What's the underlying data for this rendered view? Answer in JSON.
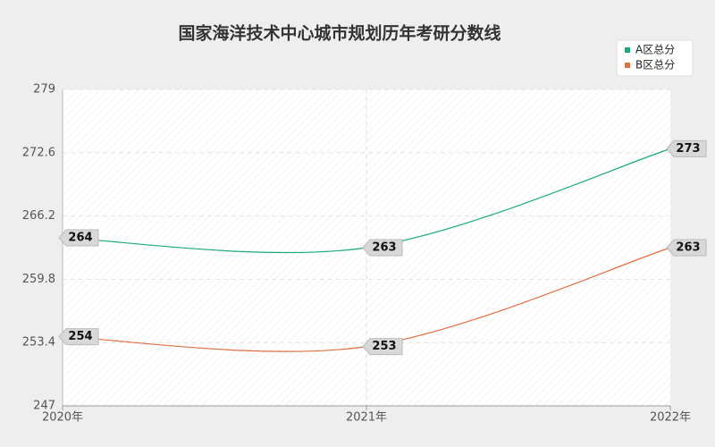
{
  "chart_data": {
    "type": "line",
    "title": "国家海洋技术中心城市规划历年考研分数线",
    "categories": [
      "2020年",
      "2021年",
      "2022年"
    ],
    "series": [
      {
        "name": "A区总分",
        "color": "#1aaa80",
        "values": [
          264,
          263,
          273
        ]
      },
      {
        "name": "B区总分",
        "color": "#e0703f",
        "values": [
          254,
          253,
          263
        ]
      }
    ],
    "ylim": [
      247,
      279
    ],
    "yticks": [
      247,
      253.4,
      259.8,
      266.2,
      272.6,
      279
    ],
    "grid": true,
    "legend": "top-right"
  }
}
